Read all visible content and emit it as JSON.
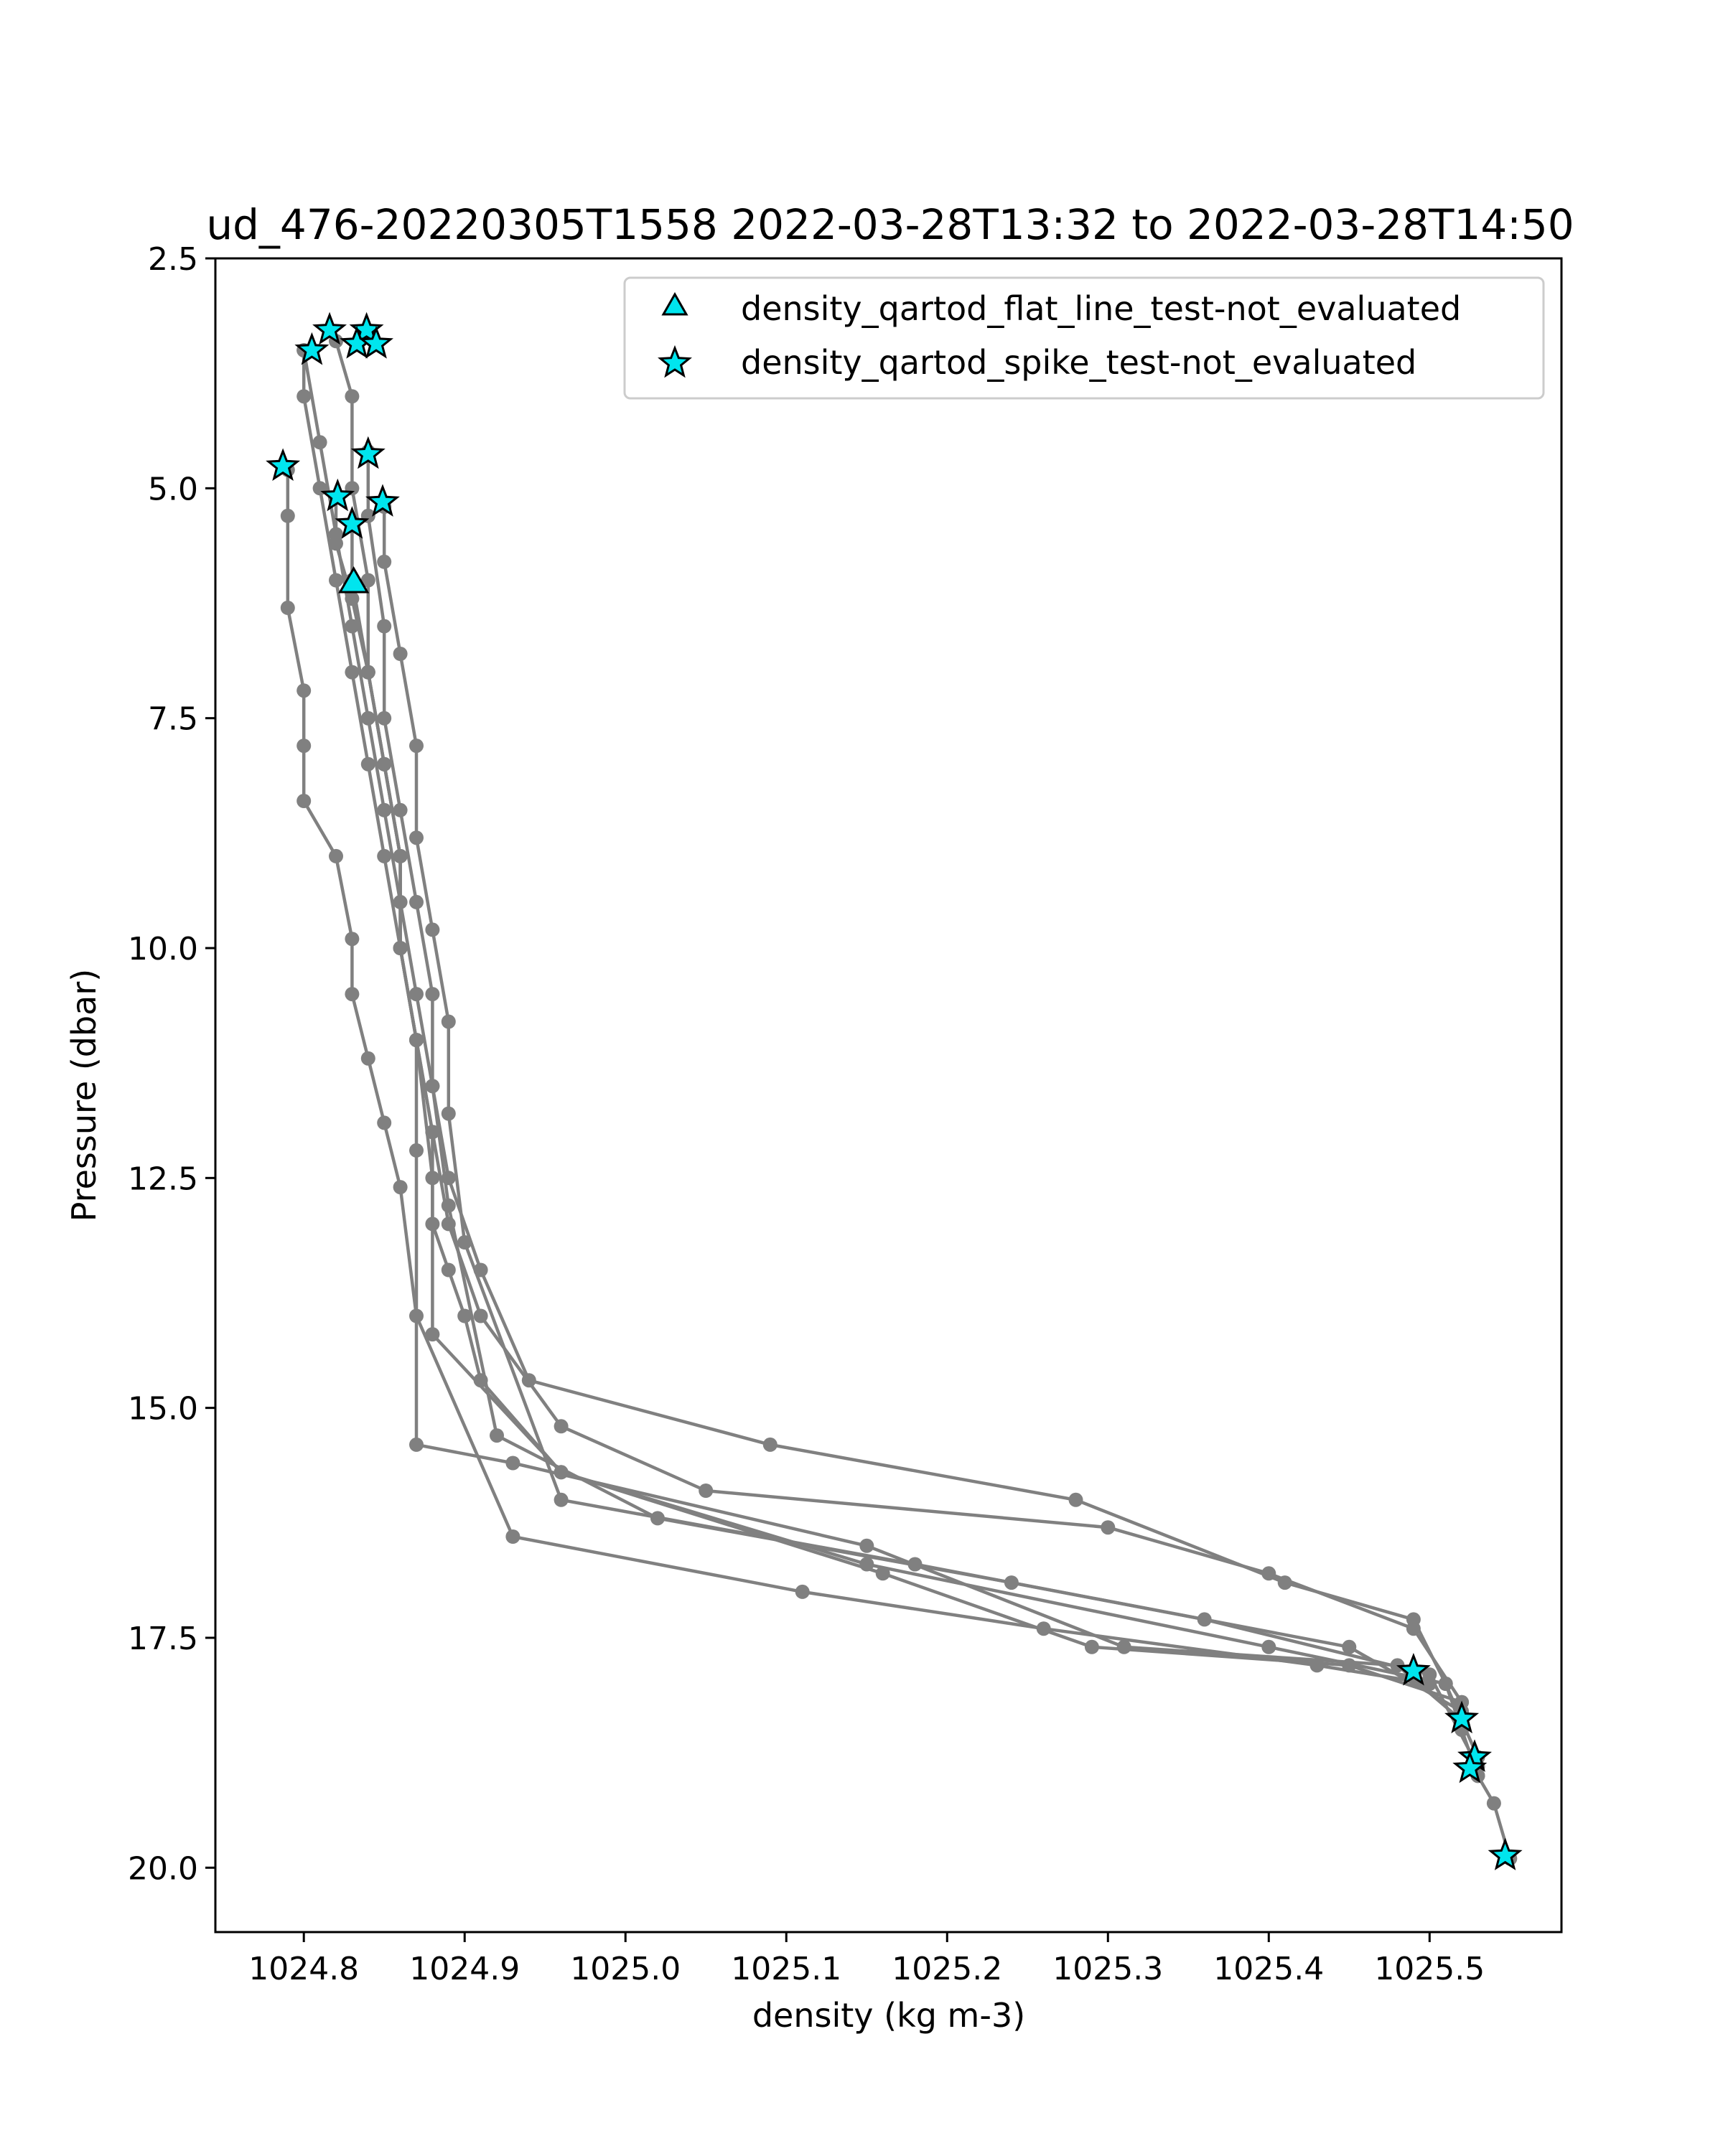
{
  "chart_data": {
    "type": "scatter",
    "title": "ud_476-20220305T1558 2022-03-28T13:32 to 2022-03-28T14:50",
    "xlabel": "density (kg m-3)",
    "ylabel": "Pressure (dbar)",
    "xlim": [
      1024.745,
      1025.582
    ],
    "ylim": [
      20.7,
      2.5
    ],
    "y_inverted": true,
    "x_ticks": [
      1024.8,
      1024.9,
      1025.0,
      1025.1,
      1025.2,
      1025.3,
      1025.4,
      1025.5
    ],
    "x_tick_labels": [
      "1024.8",
      "1024.9",
      "1025.0",
      "1025.1",
      "1025.2",
      "1025.3",
      "1025.4",
      "1025.5"
    ],
    "y_ticks": [
      2.5,
      5.0,
      7.5,
      10.0,
      12.5,
      15.0,
      17.5,
      20.0
    ],
    "y_tick_labels": [
      "2.5",
      "5.0",
      "7.5",
      "10.0",
      "12.5",
      "15.0",
      "17.5",
      "20.0"
    ],
    "legend_position": "top-right",
    "colors": {
      "profile": "#808080",
      "flag_fill": "#00e5ee",
      "flag_edge": "#000000"
    },
    "series": [
      {
        "marker": "line-dot",
        "profiles": [
          {
            "x": [
              1024.82,
              1024.83,
              1024.83,
              1024.84,
              1024.84,
              1024.85,
              1024.86,
              1024.86,
              1024.87,
              1024.88,
              1024.88,
              1024.89,
              1024.9,
              1024.91,
              1024.96,
              1025.15,
              1025.4,
              1025.51,
              1025.52,
              1025.53,
              1025.53,
              1025.54,
              1025.55
            ],
            "y": [
              3.4,
              4.0,
              5.0,
              6.0,
              7.0,
              8.0,
              9.0,
              10.0,
              11.0,
              12.0,
              13.0,
              13.5,
              14.0,
              14.7,
              15.7,
              16.7,
              17.6,
              18.0,
              18.4,
              18.8,
              19.0,
              19.3,
              19.9
            ]
          },
          {
            "x": [
              1024.8,
              1024.81,
              1024.82,
              1024.83,
              1024.84,
              1024.85,
              1024.86,
              1024.87,
              1024.88,
              1024.89,
              1024.91,
              1024.94,
              1025.09,
              1025.28,
              1025.41,
              1025.49,
              1025.51,
              1025.52,
              1025.53
            ],
            "y": [
              3.5,
              4.5,
              5.5,
              6.5,
              7.5,
              8.5,
              9.5,
              10.5,
              11.5,
              12.5,
              13.5,
              14.7,
              15.4,
              16.0,
              16.9,
              17.3,
              18.0,
              18.5,
              19.0
            ]
          },
          {
            "x": [
              1024.8,
              1024.8,
              1024.81,
              1024.82,
              1024.83,
              1024.84,
              1024.85,
              1024.86,
              1024.87,
              1024.88,
              1024.89,
              1024.91,
              1024.96,
              1025.05,
              1025.3,
              1025.4,
              1025.49,
              1025.52
            ],
            "y": [
              3.5,
              4.0,
              5.0,
              6.0,
              7.0,
              8.0,
              9.0,
              10.0,
              11.0,
              12.0,
              13.0,
              14.0,
              15.2,
              15.9,
              16.3,
              16.8,
              17.4,
              18.2
            ]
          },
          {
            "x": [
              1024.79,
              1024.79,
              1024.79,
              1024.8,
              1024.8,
              1024.8,
              1024.82,
              1024.83,
              1024.83,
              1024.84,
              1024.85,
              1024.86,
              1024.87,
              1024.93,
              1025.11,
              1025.26,
              1025.43,
              1025.5
            ],
            "y": [
              4.8,
              5.3,
              6.3,
              7.2,
              7.8,
              8.4,
              9.0,
              9.9,
              10.5,
              11.2,
              11.9,
              12.6,
              14.0,
              16.4,
              17.0,
              17.4,
              17.8,
              18.0
            ]
          },
          {
            "x": [
              1024.82,
              1024.82,
              1024.83,
              1024.84,
              1024.85,
              1024.86,
              1024.86,
              1024.87,
              1024.88,
              1024.88,
              1024.96,
              1025.16,
              1025.29,
              1025.45,
              1025.52
            ],
            "y": [
              5.1,
              5.6,
              6.2,
              7.0,
              8.0,
              9.0,
              10.0,
              11.0,
              12.5,
              14.2,
              15.7,
              16.8,
              17.6,
              17.8,
              18.2
            ]
          },
          {
            "x": [
              1024.83,
              1024.83,
              1024.84,
              1024.85,
              1024.86,
              1024.86,
              1024.87,
              1024.87,
              1024.87,
              1024.93,
              1025.15,
              1025.31,
              1025.48,
              1025.52
            ],
            "y": [
              5.4,
              6.0,
              7.0,
              8.0,
              9.0,
              10.0,
              11.0,
              12.2,
              15.4,
              15.6,
              16.5,
              17.6,
              17.8,
              18.4
            ]
          },
          {
            "x": [
              1024.84,
              1024.84,
              1024.85,
              1024.85,
              1024.86,
              1024.87,
              1024.88,
              1024.88,
              1024.89,
              1024.92,
              1025.02,
              1025.24,
              1025.45,
              1025.52
            ],
            "y": [
              4.6,
              5.3,
              6.5,
              7.5,
              8.5,
              9.5,
              10.5,
              11.5,
              12.8,
              15.3,
              16.2,
              16.9,
              17.6,
              18.3
            ]
          },
          {
            "x": [
              1024.85,
              1024.85,
              1024.86,
              1024.87,
              1024.87,
              1024.88,
              1024.89,
              1024.89,
              1024.9,
              1024.96,
              1025.18,
              1025.36,
              1025.5,
              1025.53
            ],
            "y": [
              5.2,
              5.8,
              6.8,
              7.8,
              8.8,
              9.8,
              10.8,
              11.8,
              13.2,
              16.0,
              16.7,
              17.3,
              17.9,
              18.9
            ]
          }
        ]
      },
      {
        "name": "density_qartod_flat_line_test-not_evaluated",
        "marker": "triangle",
        "x": [
          1024.831
        ],
        "y": [
          6.02
        ]
      },
      {
        "name": "density_qartod_spike_test-not_evaluated",
        "marker": "star",
        "x": [
          1024.816,
          1024.839,
          1024.805,
          1024.833,
          1024.845,
          1024.84,
          1024.787,
          1024.821,
          1024.83,
          1024.849,
          1025.49,
          1025.52,
          1025.528,
          1025.525,
          1025.547
        ],
        "y": [
          3.28,
          3.28,
          3.5,
          3.43,
          3.43,
          4.63,
          4.76,
          5.09,
          5.39,
          5.15,
          17.86,
          18.38,
          18.8,
          18.92,
          19.87
        ]
      }
    ]
  }
}
